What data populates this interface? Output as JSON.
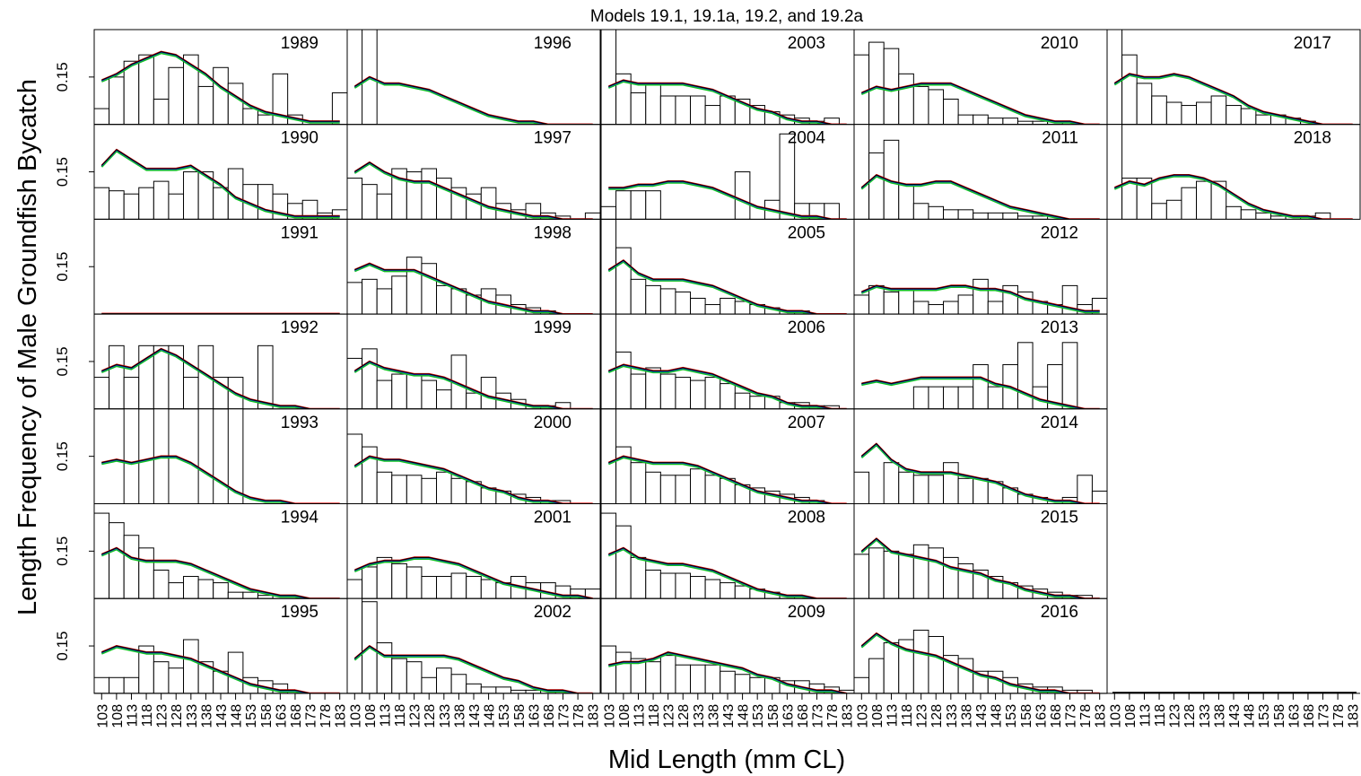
{
  "chart_data": {
    "type": "bar",
    "title": "Models 19.1, 19.1a, 19.2, and 19.2a",
    "ylabel": "Length Frequency of Male Groundfish Bycatch",
    "xlabel": "Mid Length (mm CL)",
    "x_ticks": [
      "103",
      "108",
      "113",
      "118",
      "123",
      "128",
      "133",
      "138",
      "143",
      "148",
      "153",
      "158",
      "163",
      "168",
      "173",
      "178",
      "183"
    ],
    "y_tick": 0.15,
    "ylim": [
      0,
      0.3
    ],
    "layout": "7 rows x 5 columns, filled by column",
    "line_colors": [
      "#000000",
      "#e00000",
      "#2040ff",
      "#10c020"
    ],
    "panels": [
      {
        "year": "1989",
        "bars": [
          0.05,
          0.15,
          0.2,
          0.22,
          0.08,
          0.18,
          0.22,
          0.12,
          0.18,
          0.13,
          0.05,
          0.03,
          0.16,
          0.03,
          0,
          0,
          0.1
        ],
        "fit": [
          0.14,
          0.16,
          0.19,
          0.21,
          0.23,
          0.22,
          0.19,
          0.16,
          0.12,
          0.09,
          0.06,
          0.04,
          0.03,
          0.02,
          0.01,
          0.01,
          0.01
        ]
      },
      {
        "year": "1990",
        "bars": [
          0.1,
          0.09,
          0.08,
          0.1,
          0.12,
          0.08,
          0.15,
          0.15,
          0.1,
          0.16,
          0.11,
          0.11,
          0.08,
          0.05,
          0.06,
          0.02,
          0.03
        ],
        "fit": [
          0.17,
          0.22,
          0.19,
          0.16,
          0.16,
          0.16,
          0.17,
          0.14,
          0.11,
          0.07,
          0.05,
          0.03,
          0.02,
          0.01,
          0.01,
          0.01,
          0.01
        ]
      },
      {
        "year": "1991",
        "bars": [
          0,
          0,
          0,
          0,
          0,
          0,
          0,
          0,
          0,
          0,
          0,
          0,
          0,
          0,
          0,
          0,
          0
        ],
        "fit": [
          0.001,
          0.001,
          0.001,
          0.001,
          0.001,
          0.001,
          0.001,
          0.001,
          0.001,
          0.001,
          0.001,
          0.001,
          0.001,
          0.001,
          0.001,
          0.001,
          0.001
        ]
      },
      {
        "year": "1992",
        "bars": [
          0.1,
          0.2,
          0.1,
          0.2,
          0.2,
          0.2,
          0.1,
          0.2,
          0.1,
          0.1,
          0,
          0.2,
          0,
          0,
          0,
          0,
          0
        ],
        "fit": [
          0.12,
          0.14,
          0.13,
          0.16,
          0.19,
          0.17,
          0.14,
          0.11,
          0.08,
          0.05,
          0.03,
          0.02,
          0.01,
          0.01,
          0,
          0,
          0
        ]
      },
      {
        "year": "1993",
        "bars": [
          0,
          0,
          0.33,
          0,
          0.33,
          0,
          0,
          0.33,
          0,
          0.33,
          0,
          0,
          0,
          0,
          0,
          0,
          0
        ],
        "fit": [
          0.13,
          0.14,
          0.13,
          0.14,
          0.15,
          0.15,
          0.13,
          0.1,
          0.07,
          0.04,
          0.02,
          0.01,
          0.01,
          0,
          0,
          0,
          0
        ]
      },
      {
        "year": "1994",
        "bars": [
          0.27,
          0.24,
          0.2,
          0.16,
          0.09,
          0.05,
          0.07,
          0.06,
          0.05,
          0.02,
          0.02,
          0.01,
          0,
          0,
          0,
          0,
          0
        ],
        "fit": [
          0.14,
          0.16,
          0.13,
          0.12,
          0.12,
          0.12,
          0.11,
          0.09,
          0.07,
          0.05,
          0.03,
          0.02,
          0.01,
          0.01,
          0,
          0,
          0
        ]
      },
      {
        "year": "1995",
        "bars": [
          0.05,
          0.05,
          0.05,
          0.15,
          0.1,
          0.08,
          0.17,
          0.1,
          0.07,
          0.13,
          0.05,
          0.04,
          0.03,
          0,
          0,
          0,
          0
        ],
        "fit": [
          0.13,
          0.15,
          0.14,
          0.13,
          0.13,
          0.12,
          0.11,
          0.09,
          0.07,
          0.05,
          0.03,
          0.02,
          0.01,
          0.01,
          0,
          0,
          0
        ]
      },
      {
        "year": "1996",
        "bars": [
          0,
          0.9,
          0,
          0,
          0,
          0,
          0,
          0,
          0,
          0,
          0,
          0,
          0,
          0,
          0,
          0,
          0
        ],
        "fit": [
          0.12,
          0.15,
          0.13,
          0.13,
          0.12,
          0.11,
          0.09,
          0.07,
          0.05,
          0.03,
          0.02,
          0.01,
          0.01,
          0,
          0,
          0,
          0
        ]
      },
      {
        "year": "1997",
        "bars": [
          0.13,
          0.11,
          0.08,
          0.16,
          0.15,
          0.16,
          0.13,
          0.1,
          0.08,
          0.1,
          0.05,
          0.03,
          0.05,
          0.02,
          0.01,
          0,
          0.02
        ],
        "fit": [
          0.15,
          0.18,
          0.15,
          0.13,
          0.12,
          0.12,
          0.1,
          0.08,
          0.06,
          0.04,
          0.03,
          0.02,
          0.01,
          0.01,
          0,
          0,
          0
        ]
      },
      {
        "year": "1998",
        "bars": [
          0.1,
          0.11,
          0.08,
          0.12,
          0.18,
          0.16,
          0.09,
          0.08,
          0.06,
          0.08,
          0.06,
          0.03,
          0.02,
          0.01,
          0,
          0,
          0
        ],
        "fit": [
          0.14,
          0.16,
          0.14,
          0.14,
          0.14,
          0.12,
          0.1,
          0.08,
          0.06,
          0.04,
          0.03,
          0.02,
          0.01,
          0.01,
          0,
          0,
          0
        ]
      },
      {
        "year": "1999",
        "bars": [
          0.16,
          0.19,
          0.09,
          0.11,
          0.11,
          0.09,
          0.06,
          0.17,
          0.05,
          0.1,
          0.05,
          0.03,
          0.01,
          0.01,
          0.02,
          0,
          0
        ],
        "fit": [
          0.12,
          0.15,
          0.13,
          0.12,
          0.11,
          0.11,
          0.1,
          0.08,
          0.06,
          0.04,
          0.03,
          0.02,
          0.01,
          0.01,
          0,
          0,
          0
        ]
      },
      {
        "year": "2000",
        "bars": [
          0.22,
          0.18,
          0.1,
          0.09,
          0.09,
          0.08,
          0.1,
          0.08,
          0.07,
          0.05,
          0.04,
          0.03,
          0.02,
          0.01,
          0.01,
          0,
          0
        ],
        "fit": [
          0.12,
          0.15,
          0.14,
          0.14,
          0.13,
          0.12,
          0.11,
          0.09,
          0.07,
          0.05,
          0.04,
          0.02,
          0.01,
          0.01,
          0,
          0,
          0
        ]
      },
      {
        "year": "2001",
        "bars": [
          0.06,
          0.1,
          0.13,
          0.11,
          0.1,
          0.07,
          0.07,
          0.08,
          0.07,
          0.06,
          0.05,
          0.07,
          0.05,
          0.05,
          0.04,
          0.03,
          0.03
        ],
        "fit": [
          0.09,
          0.11,
          0.12,
          0.12,
          0.13,
          0.13,
          0.12,
          0.11,
          0.09,
          0.07,
          0.05,
          0.04,
          0.03,
          0.02,
          0.01,
          0.01,
          0
        ]
      },
      {
        "year": "2002",
        "bars": [
          0.32,
          0.29,
          0.16,
          0.11,
          0.1,
          0.05,
          0.08,
          0.06,
          0.03,
          0.02,
          0.02,
          0.01,
          0.01,
          0.01,
          0,
          0,
          0
        ],
        "fit": [
          0.11,
          0.15,
          0.12,
          0.12,
          0.12,
          0.12,
          0.12,
          0.11,
          0.09,
          0.07,
          0.05,
          0.04,
          0.02,
          0.01,
          0.01,
          0,
          0
        ]
      },
      {
        "year": "2003",
        "bars": [
          0.3,
          0.16,
          0.1,
          0.13,
          0.09,
          0.09,
          0.09,
          0.06,
          0.09,
          0.08,
          0.06,
          0.04,
          0.03,
          0.02,
          0.01,
          0.02,
          0
        ],
        "fit": [
          0.12,
          0.14,
          0.13,
          0.13,
          0.13,
          0.13,
          0.12,
          0.11,
          0.09,
          0.07,
          0.05,
          0.04,
          0.02,
          0.01,
          0.01,
          0,
          0
        ]
      },
      {
        "year": "2004",
        "bars": [
          0.04,
          0.09,
          0.09,
          0.09,
          0,
          0,
          0,
          0,
          0,
          0.15,
          0,
          0.06,
          0.27,
          0.05,
          0.05,
          0.05,
          0
        ],
        "fit": [
          0.1,
          0.1,
          0.11,
          0.11,
          0.12,
          0.12,
          0.11,
          0.1,
          0.08,
          0.06,
          0.04,
          0.03,
          0.02,
          0.01,
          0.01,
          0,
          0
        ]
      },
      {
        "year": "2005",
        "bars": [
          0.3,
          0.21,
          0.11,
          0.09,
          0.08,
          0.07,
          0.05,
          0.03,
          0.05,
          0.04,
          0.03,
          0.02,
          0.01,
          0.01,
          0,
          0,
          0
        ],
        "fit": [
          0.14,
          0.17,
          0.13,
          0.11,
          0.11,
          0.11,
          0.1,
          0.09,
          0.07,
          0.05,
          0.03,
          0.02,
          0.01,
          0.01,
          0,
          0,
          0
        ]
      },
      {
        "year": "2006",
        "bars": [
          0.32,
          0.18,
          0.11,
          0.13,
          0.11,
          0.1,
          0.09,
          0.1,
          0.08,
          0.05,
          0.04,
          0.04,
          0.02,
          0.02,
          0.01,
          0.01,
          0
        ],
        "fit": [
          0.12,
          0.14,
          0.13,
          0.12,
          0.12,
          0.13,
          0.12,
          0.11,
          0.09,
          0.07,
          0.05,
          0.04,
          0.02,
          0.01,
          0.01,
          0,
          0
        ]
      },
      {
        "year": "2007",
        "bars": [
          0.3,
          0.18,
          0.13,
          0.1,
          0.09,
          0.09,
          0.11,
          0.09,
          0.08,
          0.06,
          0.05,
          0.04,
          0.03,
          0.02,
          0.01,
          0,
          0
        ],
        "fit": [
          0.13,
          0.15,
          0.14,
          0.13,
          0.13,
          0.13,
          0.12,
          0.1,
          0.08,
          0.06,
          0.04,
          0.03,
          0.02,
          0.01,
          0.01,
          0,
          0
        ]
      },
      {
        "year": "2008",
        "bars": [
          0.27,
          0.23,
          0.13,
          0.09,
          0.08,
          0.08,
          0.07,
          0.06,
          0.05,
          0.04,
          0.03,
          0.02,
          0.01,
          0,
          0,
          0,
          0
        ],
        "fit": [
          0.14,
          0.16,
          0.13,
          0.12,
          0.11,
          0.11,
          0.1,
          0.09,
          0.07,
          0.05,
          0.03,
          0.02,
          0.01,
          0.01,
          0,
          0,
          0
        ]
      },
      {
        "year": "2009",
        "bars": [
          0.15,
          0.13,
          0.11,
          0.1,
          0.12,
          0.09,
          0.09,
          0.09,
          0.07,
          0.06,
          0.05,
          0.05,
          0.04,
          0.04,
          0.03,
          0.02,
          0.01
        ],
        "fit": [
          0.09,
          0.1,
          0.1,
          0.11,
          0.13,
          0.12,
          0.11,
          0.1,
          0.09,
          0.08,
          0.06,
          0.05,
          0.03,
          0.02,
          0.01,
          0.01,
          0
        ]
      },
      {
        "year": "2010",
        "bars": [
          0.22,
          0.26,
          0.24,
          0.16,
          0.12,
          0.11,
          0.08,
          0.03,
          0.03,
          0.02,
          0.02,
          0.01,
          0.01,
          0.01,
          0,
          0,
          0
        ],
        "fit": [
          0.1,
          0.12,
          0.11,
          0.12,
          0.13,
          0.13,
          0.13,
          0.11,
          0.09,
          0.07,
          0.05,
          0.03,
          0.02,
          0.01,
          0.01,
          0,
          0
        ]
      },
      {
        "year": "2011",
        "bars": [
          0.34,
          0.21,
          0.25,
          0.11,
          0.05,
          0.04,
          0.03,
          0.03,
          0.02,
          0.02,
          0.02,
          0.01,
          0.01,
          0,
          0,
          0,
          0
        ],
        "fit": [
          0.1,
          0.14,
          0.12,
          0.11,
          0.11,
          0.12,
          0.12,
          0.1,
          0.08,
          0.06,
          0.04,
          0.03,
          0.02,
          0.01,
          0,
          0,
          0
        ]
      },
      {
        "year": "2012",
        "bars": [
          0.06,
          0.09,
          0.07,
          0.08,
          0.04,
          0.03,
          0.04,
          0.06,
          0.11,
          0.04,
          0.09,
          0.07,
          0.04,
          0.03,
          0.09,
          0.03,
          0.05
        ],
        "fit": [
          0.07,
          0.09,
          0.08,
          0.08,
          0.08,
          0.08,
          0.09,
          0.09,
          0.08,
          0.08,
          0.07,
          0.05,
          0.04,
          0.03,
          0.02,
          0.01,
          0.01
        ]
      },
      {
        "year": "2013",
        "bars": [
          0,
          0,
          0,
          0,
          0.07,
          0.07,
          0.07,
          0.07,
          0.14,
          0.07,
          0.14,
          0.21,
          0.07,
          0.14,
          0.21,
          0,
          0
        ],
        "fit": [
          0.08,
          0.09,
          0.08,
          0.09,
          0.1,
          0.1,
          0.1,
          0.1,
          0.1,
          0.08,
          0.07,
          0.05,
          0.03,
          0.02,
          0.01,
          0,
          0
        ]
      },
      {
        "year": "2014",
        "bars": [
          0.1,
          0,
          0.13,
          0.1,
          0.09,
          0.09,
          0.13,
          0.08,
          0.08,
          0.07,
          0.05,
          0.03,
          0.02,
          0,
          0.02,
          0.09,
          0.04
        ],
        "fit": [
          0.15,
          0.19,
          0.14,
          0.11,
          0.1,
          0.1,
          0.1,
          0.09,
          0.08,
          0.07,
          0.05,
          0.03,
          0.02,
          0.01,
          0.01,
          0,
          0
        ]
      },
      {
        "year": "2015",
        "bars": [
          0.14,
          0.16,
          0.15,
          0.14,
          0.17,
          0.16,
          0.13,
          0.11,
          0.09,
          0.07,
          0.05,
          0.04,
          0.03,
          0.02,
          0.01,
          0.01,
          0
        ],
        "fit": [
          0.15,
          0.19,
          0.15,
          0.14,
          0.13,
          0.12,
          0.1,
          0.09,
          0.08,
          0.06,
          0.05,
          0.03,
          0.02,
          0.01,
          0.01,
          0,
          0
        ]
      },
      {
        "year": "2016",
        "bars": [
          0.05,
          0.11,
          0.16,
          0.17,
          0.2,
          0.18,
          0.12,
          0.11,
          0.07,
          0.07,
          0.05,
          0.03,
          0.02,
          0.02,
          0.01,
          0.01,
          0
        ],
        "fit": [
          0.15,
          0.19,
          0.16,
          0.14,
          0.13,
          0.12,
          0.1,
          0.08,
          0.06,
          0.05,
          0.03,
          0.02,
          0.01,
          0.01,
          0,
          0,
          0
        ]
      },
      {
        "year": "2017",
        "bars": [
          0.3,
          0.22,
          0.13,
          0.09,
          0.07,
          0.06,
          0.07,
          0.09,
          0.06,
          0.05,
          0.03,
          0.03,
          0.02,
          0.01,
          0,
          0,
          0
        ],
        "fit": [
          0.13,
          0.16,
          0.15,
          0.15,
          0.16,
          0.15,
          0.13,
          0.11,
          0.09,
          0.06,
          0.04,
          0.03,
          0.02,
          0.01,
          0,
          0,
          0
        ]
      },
      {
        "year": "2018",
        "bars": [
          0.33,
          0.13,
          0.13,
          0.05,
          0.06,
          0.1,
          0.12,
          0.12,
          0.04,
          0.03,
          0.02,
          0.01,
          0.01,
          0.01,
          0.02,
          0,
          0
        ],
        "fit": [
          0.1,
          0.12,
          0.11,
          0.13,
          0.14,
          0.14,
          0.13,
          0.11,
          0.08,
          0.05,
          0.03,
          0.02,
          0.01,
          0.01,
          0,
          0,
          0
        ]
      }
    ]
  }
}
